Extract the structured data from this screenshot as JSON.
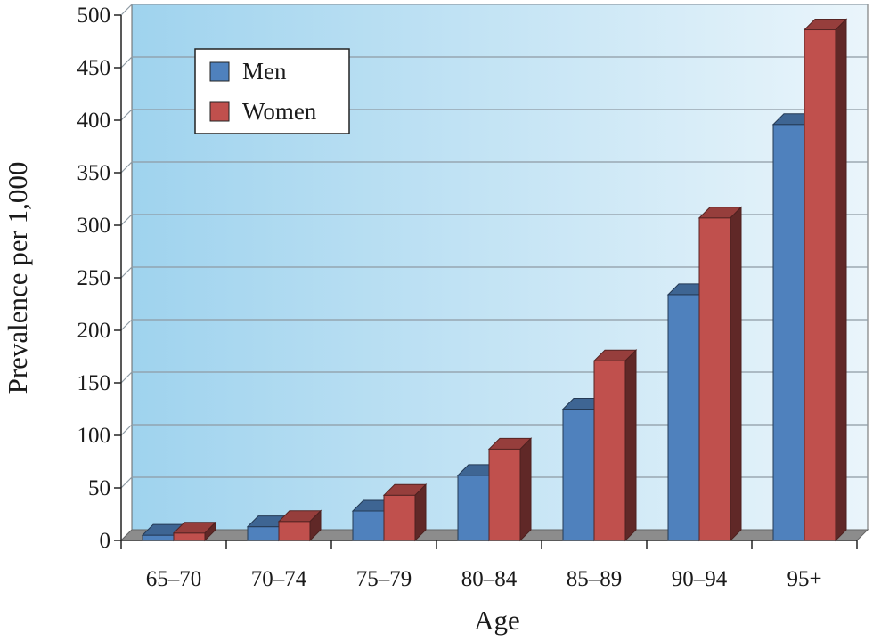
{
  "chart_data": {
    "type": "bar",
    "style": "3d-clustered",
    "title": "",
    "xlabel": "Age",
    "ylabel": "Prevalence per 1,000",
    "categories": [
      "65–70",
      "70–74",
      "75–79",
      "80–84",
      "85–89",
      "90–94",
      "95+"
    ],
    "series": [
      {
        "name": "Men",
        "color": "#4f81bd",
        "values": [
          5,
          13,
          28,
          62,
          125,
          234,
          396
        ]
      },
      {
        "name": "Women",
        "color": "#c0504d",
        "values": [
          7,
          18,
          43,
          87,
          171,
          307,
          486
        ]
      }
    ],
    "ylim": [
      0,
      500
    ],
    "yticks": [
      "0",
      "50",
      "100",
      "150",
      "200",
      "250",
      "300",
      "350",
      "400",
      "450",
      "500"
    ],
    "grid": true,
    "legend_position": "top-left",
    "background": {
      "gradient_start": "#9fd3ee",
      "gradient_end": "#eaf5fb"
    },
    "colors": {
      "grid": "#8e9aa4",
      "floor": "#8c8c8c",
      "axis": "#222222"
    }
  }
}
